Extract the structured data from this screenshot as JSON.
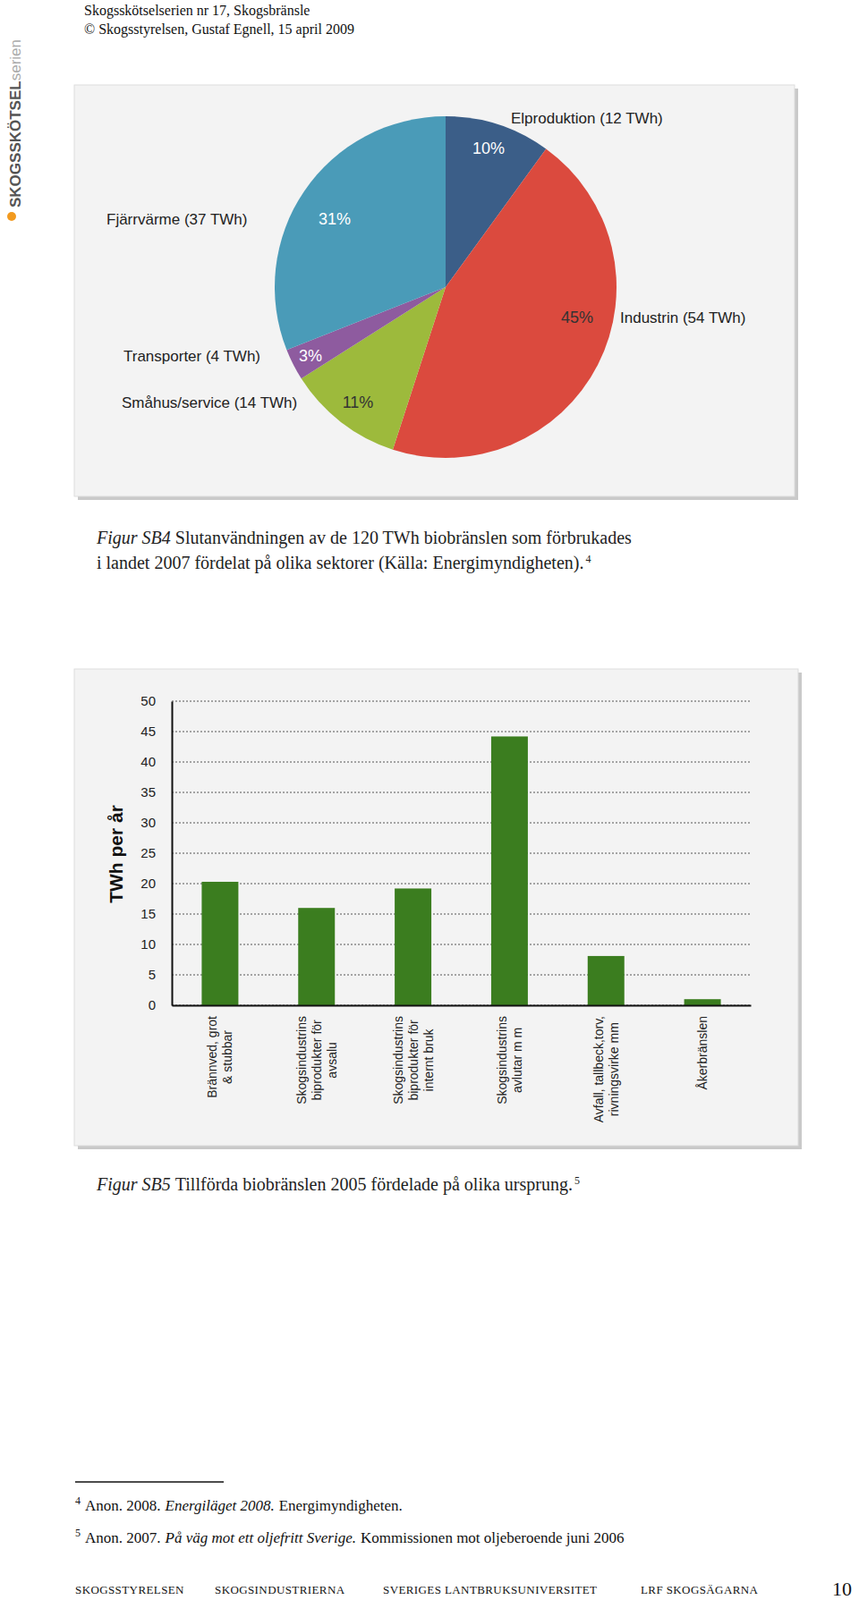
{
  "header": {
    "lines": [
      "Skogsskötselserien nr 17, Skogsbränsle",
      "© Skogsstyrelsen, Gustaf Egnell, 15 april 2009"
    ]
  },
  "side_logo": {
    "main": "SKOGSSKÖTSEL",
    "suffix": "serien"
  },
  "chart_data": [
    {
      "type": "pie",
      "categories": [
        "Elproduktion (12 TWh)",
        "Industrin (54 TWh)",
        "Småhus/service (14 TWh)",
        "Transporter (4 TWh)",
        "Fjärrvärme (37 TWh)"
      ],
      "values": [
        10,
        45,
        11,
        3,
        31
      ],
      "value_labels": [
        "10%",
        "45%",
        "11%",
        "3%",
        "31%"
      ],
      "colors": [
        "#3b5e88",
        "#db4a3e",
        "#9dba3c",
        "#8e5b9f",
        "#4a9bb8"
      ],
      "data_labels": true
    },
    {
      "type": "bar",
      "y_label": "TWh per år",
      "categories": [
        "Brännved, grot\n& stubbar",
        "Skogsindustrins\nbiprodukter för\navsalu",
        "Skogsindustrins\nbiprodukter för\ninternt bruk",
        "Skogsindustrins\navlutar m m",
        "Avfall, tallbeck,torv,\nrivningsvirke mm",
        "Åkerbränslen"
      ],
      "values": [
        20.3,
        16,
        19.2,
        44.2,
        8.1,
        1
      ],
      "color": "#3b7d1f",
      "ylim": [
        0,
        50
      ],
      "yticks": [
        0,
        5,
        10,
        15,
        20,
        25,
        30,
        35,
        40,
        45,
        50
      ],
      "grid": true
    }
  ],
  "captions": [
    {
      "label": "Figur SB4",
      "lines": [
        "Slutanvändningen av de 120 TWh biobränslen som förbrukades",
        "i landet 2007 fördelat på olika sektorer (Källa: Energimyndigheten)."
      ],
      "note": "4"
    },
    {
      "label": "Figur SB5",
      "lines": [
        "Tillförda biobränslen 2005 fördelade på olika ursprung."
      ],
      "note": "5"
    }
  ],
  "footnotes": [
    {
      "number": "4",
      "text_before": "Anon. 2008.",
      "italic_text": "Energiläget 2008.",
      "text_after": "Energimyndigheten."
    },
    {
      "number": "5",
      "text_before": "Anon. 2007.",
      "italic_text": "På väg mot ett oljefritt Sverige.",
      "text_after": "Kommissionen mot oljeberoende juni 2006"
    }
  ],
  "footer": {
    "items": [
      "SKOGSSTYRELSEN",
      "SKOGSINDUSTRIERNA",
      "SVERIGES LANTBRUKSUNIVERSITET",
      "LRF SKOGSÄGARNA"
    ],
    "page": "10"
  }
}
